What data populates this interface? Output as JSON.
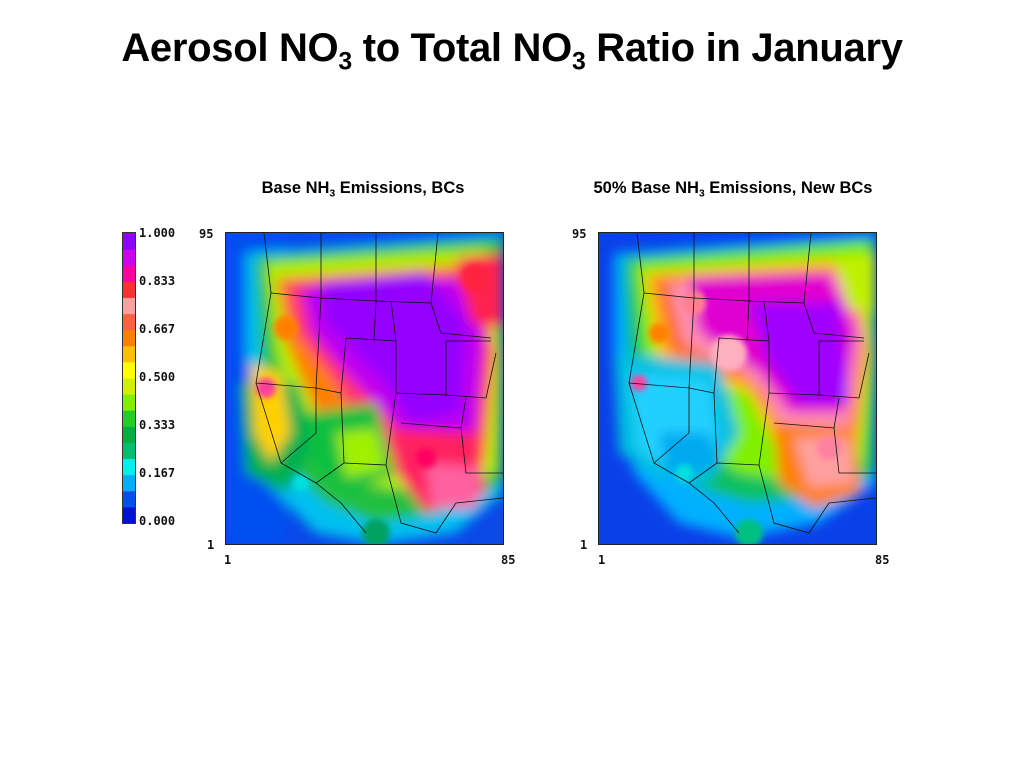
{
  "slide": {
    "title_a": "Aerosol NO",
    "title_sub1": "3",
    "title_b": " to Total NO",
    "title_sub2": "3",
    "title_c": " Ratio in January"
  },
  "colorbar": {
    "labels": [
      "1.000",
      "0.833",
      "0.667",
      "0.500",
      "0.333",
      "0.167",
      "0.000"
    ],
    "colors": [
      "#0010d8",
      "#0050f0",
      "#00b0ff",
      "#00f0f0",
      "#00c070",
      "#00b040",
      "#20d020",
      "#80f000",
      "#d0f000",
      "#ffff00",
      "#ffc000",
      "#ff8000",
      "#ff6040",
      "#ffa0a0",
      "#ff3030",
      "#ff00a0",
      "#d000f0",
      "#9000ff"
    ]
  },
  "panels": [
    {
      "title_a": "Base NH",
      "title_sub": "3",
      "title_b": " Emissions, BCs",
      "y_max": "95",
      "y_min": "1",
      "x_min": "1",
      "x_max": "85"
    },
    {
      "title_a": "50% Base NH",
      "title_sub": "3",
      "title_b": " Emissions, New BCs",
      "y_max": "95",
      "y_min": "1",
      "x_min": "1",
      "x_max": "85"
    }
  ]
}
